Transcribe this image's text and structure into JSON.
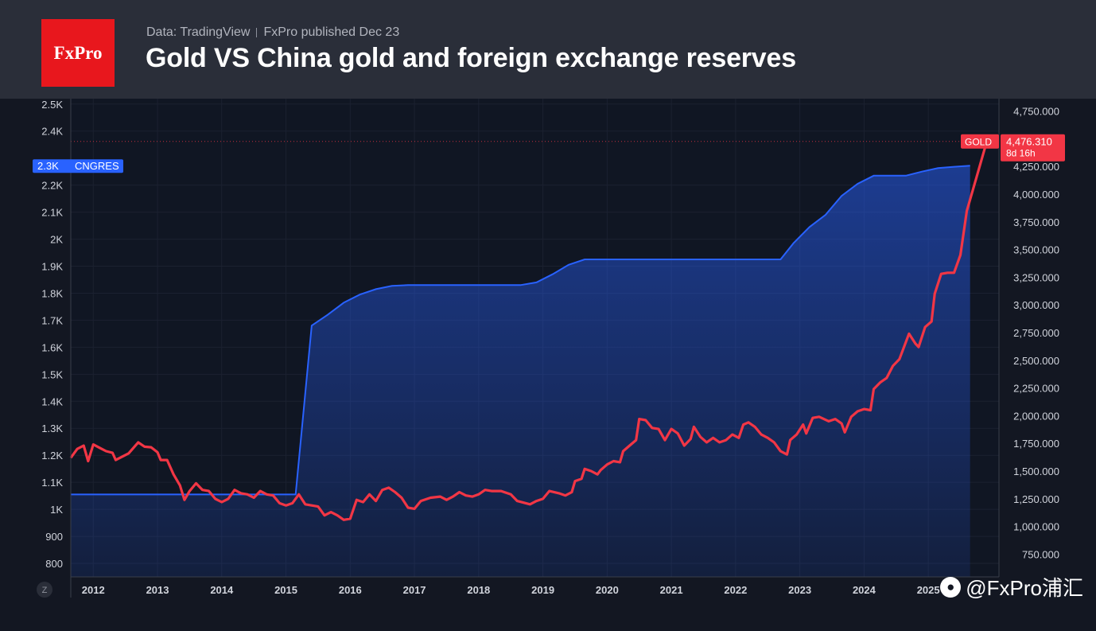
{
  "header": {
    "logo_text": "FxPro",
    "source": "Data: TradingView",
    "published": "FxPro published Dec 23",
    "title": "Gold VS China  gold and foreign exchange reserves"
  },
  "watermark": {
    "icon": "weibo-icon",
    "text": "@FxPro浦汇"
  },
  "colors": {
    "gold": "#f23645",
    "cngres": "#2962ff",
    "background": "#131722",
    "header": "#2a2e39"
  },
  "chart_data": {
    "type": "line",
    "title": "Gold VS China  gold and foreign exchange reserves",
    "x_ticks": [
      "2012",
      "2013",
      "2014",
      "2015",
      "2016",
      "2017",
      "2018",
      "2019",
      "2020",
      "2021",
      "2022",
      "2023",
      "2024",
      "2025"
    ],
    "xlim": [
      2011.65,
      2026.1
    ],
    "left_axis": {
      "ylim": [
        750,
        2520
      ],
      "ticks": [
        {
          "v": 800,
          "label": "800"
        },
        {
          "v": 900,
          "label": "900"
        },
        {
          "v": 1000,
          "label": "1K"
        },
        {
          "v": 1100,
          "label": "1.1K"
        },
        {
          "v": 1200,
          "label": "1.2K"
        },
        {
          "v": 1300,
          "label": "1.3K"
        },
        {
          "v": 1400,
          "label": "1.4K"
        },
        {
          "v": 1500,
          "label": "1.5K"
        },
        {
          "v": 1600,
          "label": "1.6K"
        },
        {
          "v": 1700,
          "label": "1.7K"
        },
        {
          "v": 1800,
          "label": "1.8K"
        },
        {
          "v": 1900,
          "label": "1.9K"
        },
        {
          "v": 2000,
          "label": "2K"
        },
        {
          "v": 2100,
          "label": "2.1K"
        },
        {
          "v": 2200,
          "label": "2.2K"
        },
        {
          "v": 2400,
          "label": "2.4K"
        },
        {
          "v": 2500,
          "label": "2.5K"
        }
      ]
    },
    "right_axis": {
      "ylim": [
        545,
        4862
      ],
      "ticks": [
        {
          "v": 750,
          "label": "750.000"
        },
        {
          "v": 1000,
          "label": "1,000.000"
        },
        {
          "v": 1250,
          "label": "1,250.000"
        },
        {
          "v": 1500,
          "label": "1,500.000"
        },
        {
          "v": 1750,
          "label": "1,750.000"
        },
        {
          "v": 2000,
          "label": "2,000.000"
        },
        {
          "v": 2250,
          "label": "2,250.000"
        },
        {
          "v": 2500,
          "label": "2,500.000"
        },
        {
          "v": 2750,
          "label": "2,750.000"
        },
        {
          "v": 3000,
          "label": "3,000.000"
        },
        {
          "v": 3250,
          "label": "3,250.000"
        },
        {
          "v": 3500,
          "label": "3,500.000"
        },
        {
          "v": 3750,
          "label": "3,750.000"
        },
        {
          "v": 4000,
          "label": "4,000.000"
        },
        {
          "v": 4250,
          "label": "4,250.000"
        },
        {
          "v": 4750,
          "label": "4,750.000"
        }
      ]
    },
    "series": [
      {
        "name": "CNGRES",
        "axis": "left",
        "type": "area",
        "last_label": "2.3K",
        "points": [
          [
            2011.65,
            1055
          ],
          [
            2015.15,
            1055
          ],
          [
            2015.4,
            1680
          ],
          [
            2015.65,
            1720
          ],
          [
            2015.9,
            1765
          ],
          [
            2016.15,
            1795
          ],
          [
            2016.4,
            1815
          ],
          [
            2016.65,
            1827
          ],
          [
            2016.9,
            1830
          ],
          [
            2017.4,
            1830
          ],
          [
            2018.4,
            1830
          ],
          [
            2018.65,
            1830
          ],
          [
            2018.9,
            1840
          ],
          [
            2019.15,
            1870
          ],
          [
            2019.4,
            1905
          ],
          [
            2019.65,
            1925
          ],
          [
            2020.5,
            1925
          ],
          [
            2021.5,
            1925
          ],
          [
            2022.2,
            1925
          ],
          [
            2022.7,
            1925
          ],
          [
            2022.9,
            1985
          ],
          [
            2023.15,
            2045
          ],
          [
            2023.4,
            2090
          ],
          [
            2023.65,
            2160
          ],
          [
            2023.9,
            2205
          ],
          [
            2024.15,
            2235
          ],
          [
            2024.4,
            2235
          ],
          [
            2024.65,
            2235
          ],
          [
            2024.9,
            2250
          ],
          [
            2025.15,
            2263
          ],
          [
            2025.4,
            2268
          ],
          [
            2025.65,
            2272
          ]
        ]
      },
      {
        "name": "GOLD",
        "axis": "right",
        "type": "line",
        "last_value": "4,476.310",
        "last_sub": "8d 16h",
        "points": [
          [
            2011.65,
            1620
          ],
          [
            2011.75,
            1700
          ],
          [
            2011.85,
            1730
          ],
          [
            2011.92,
            1590
          ],
          [
            2012.0,
            1740
          ],
          [
            2012.1,
            1710
          ],
          [
            2012.2,
            1680
          ],
          [
            2012.3,
            1665
          ],
          [
            2012.35,
            1600
          ],
          [
            2012.45,
            1630
          ],
          [
            2012.55,
            1660
          ],
          [
            2012.7,
            1760
          ],
          [
            2012.8,
            1720
          ],
          [
            2012.9,
            1715
          ],
          [
            2013.0,
            1670
          ],
          [
            2013.05,
            1600
          ],
          [
            2013.15,
            1600
          ],
          [
            2013.25,
            1470
          ],
          [
            2013.35,
            1370
          ],
          [
            2013.42,
            1240
          ],
          [
            2013.5,
            1320
          ],
          [
            2013.6,
            1390
          ],
          [
            2013.7,
            1330
          ],
          [
            2013.8,
            1320
          ],
          [
            2013.9,
            1250
          ],
          [
            2014.0,
            1220
          ],
          [
            2014.1,
            1250
          ],
          [
            2014.2,
            1330
          ],
          [
            2014.3,
            1300
          ],
          [
            2014.4,
            1290
          ],
          [
            2014.5,
            1260
          ],
          [
            2014.6,
            1320
          ],
          [
            2014.7,
            1290
          ],
          [
            2014.8,
            1280
          ],
          [
            2014.9,
            1210
          ],
          [
            2015.0,
            1190
          ],
          [
            2015.1,
            1210
          ],
          [
            2015.2,
            1290
          ],
          [
            2015.3,
            1200
          ],
          [
            2015.4,
            1190
          ],
          [
            2015.5,
            1180
          ],
          [
            2015.6,
            1100
          ],
          [
            2015.7,
            1130
          ],
          [
            2015.8,
            1100
          ],
          [
            2015.9,
            1060
          ],
          [
            2016.0,
            1070
          ],
          [
            2016.1,
            1240
          ],
          [
            2016.2,
            1220
          ],
          [
            2016.3,
            1290
          ],
          [
            2016.4,
            1230
          ],
          [
            2016.5,
            1330
          ],
          [
            2016.6,
            1350
          ],
          [
            2016.7,
            1310
          ],
          [
            2016.8,
            1260
          ],
          [
            2016.9,
            1170
          ],
          [
            2017.0,
            1160
          ],
          [
            2017.1,
            1230
          ],
          [
            2017.25,
            1260
          ],
          [
            2017.4,
            1270
          ],
          [
            2017.5,
            1240
          ],
          [
            2017.6,
            1270
          ],
          [
            2017.7,
            1310
          ],
          [
            2017.8,
            1280
          ],
          [
            2017.9,
            1270
          ],
          [
            2018.0,
            1290
          ],
          [
            2018.1,
            1330
          ],
          [
            2018.2,
            1320
          ],
          [
            2018.35,
            1320
          ],
          [
            2018.5,
            1290
          ],
          [
            2018.6,
            1230
          ],
          [
            2018.8,
            1200
          ],
          [
            2018.9,
            1230
          ],
          [
            2019.0,
            1250
          ],
          [
            2019.1,
            1320
          ],
          [
            2019.25,
            1300
          ],
          [
            2019.35,
            1280
          ],
          [
            2019.45,
            1310
          ],
          [
            2019.5,
            1410
          ],
          [
            2019.6,
            1430
          ],
          [
            2019.65,
            1520
          ],
          [
            2019.75,
            1500
          ],
          [
            2019.85,
            1470
          ],
          [
            2019.9,
            1510
          ],
          [
            2020.0,
            1560
          ],
          [
            2020.1,
            1590
          ],
          [
            2020.2,
            1580
          ],
          [
            2020.25,
            1680
          ],
          [
            2020.35,
            1730
          ],
          [
            2020.45,
            1780
          ],
          [
            2020.5,
            1970
          ],
          [
            2020.6,
            1960
          ],
          [
            2020.7,
            1890
          ],
          [
            2020.8,
            1880
          ],
          [
            2020.9,
            1780
          ],
          [
            2021.0,
            1880
          ],
          [
            2021.1,
            1840
          ],
          [
            2021.2,
            1730
          ],
          [
            2021.3,
            1790
          ],
          [
            2021.35,
            1900
          ],
          [
            2021.45,
            1810
          ],
          [
            2021.55,
            1760
          ],
          [
            2021.65,
            1800
          ],
          [
            2021.75,
            1760
          ],
          [
            2021.85,
            1780
          ],
          [
            2021.95,
            1830
          ],
          [
            2022.05,
            1800
          ],
          [
            2022.12,
            1920
          ],
          [
            2022.2,
            1940
          ],
          [
            2022.3,
            1900
          ],
          [
            2022.4,
            1830
          ],
          [
            2022.5,
            1800
          ],
          [
            2022.6,
            1760
          ],
          [
            2022.7,
            1680
          ],
          [
            2022.8,
            1650
          ],
          [
            2022.85,
            1780
          ],
          [
            2022.95,
            1830
          ],
          [
            2023.05,
            1920
          ],
          [
            2023.1,
            1840
          ],
          [
            2023.2,
            1980
          ],
          [
            2023.3,
            1990
          ],
          [
            2023.45,
            1950
          ],
          [
            2023.55,
            1970
          ],
          [
            2023.65,
            1930
          ],
          [
            2023.7,
            1850
          ],
          [
            2023.8,
            1990
          ],
          [
            2023.9,
            2040
          ],
          [
            2024.0,
            2060
          ],
          [
            2024.1,
            2050
          ],
          [
            2024.15,
            2240
          ],
          [
            2024.25,
            2300
          ],
          [
            2024.35,
            2340
          ],
          [
            2024.45,
            2450
          ],
          [
            2024.55,
            2510
          ],
          [
            2024.7,
            2740
          ],
          [
            2024.8,
            2650
          ],
          [
            2024.85,
            2620
          ],
          [
            2024.95,
            2800
          ],
          [
            2025.05,
            2850
          ],
          [
            2025.1,
            3100
          ],
          [
            2025.2,
            3280
          ],
          [
            2025.3,
            3290
          ],
          [
            2025.4,
            3290
          ],
          [
            2025.5,
            3450
          ],
          [
            2025.6,
            3850
          ],
          [
            2025.75,
            4150
          ],
          [
            2025.91,
            4476.31
          ]
        ]
      }
    ]
  }
}
